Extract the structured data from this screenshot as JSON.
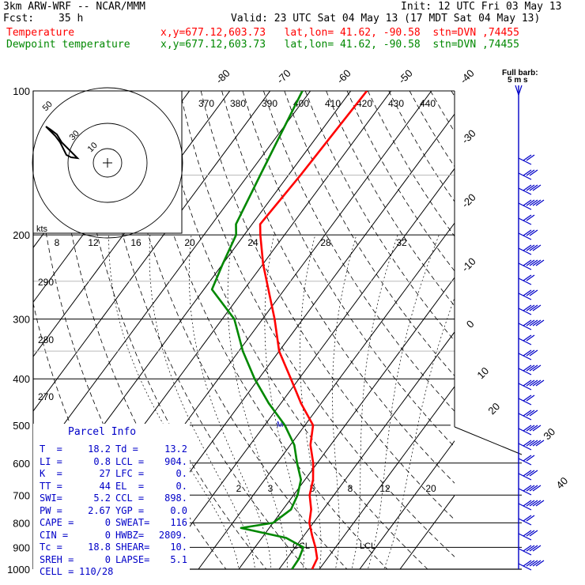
{
  "header": {
    "model": "3km ARW-WRF -- NCAR/MMM",
    "init": "Init: 12 UTC Fri 03 May 13",
    "fcst_label": "Fcst:",
    "fcst_value": "35 h",
    "valid": "Valid: 23 UTC Sat 04 May 13 (17 MDT Sat 04 May 13)",
    "temp_label": "Temperature",
    "dew_label": "Dewpoint temperature",
    "loc_text": "x,y=677.12,603.73   lat,lon= 41.62, -90.58  stn=DVN ,74455"
  },
  "colors": {
    "temperature": "#ff0000",
    "dewpoint": "#008800",
    "wind": "#0000c8",
    "axis": "#000000"
  },
  "chart_data": {
    "type": "line",
    "pressure_levels": [
      100,
      200,
      300,
      400,
      500,
      600,
      700,
      800,
      900,
      1000
    ],
    "pressure_labels": [
      "100",
      "200",
      "300",
      "400",
      "500",
      "600",
      "700",
      "800",
      "900",
      "1000"
    ],
    "isotherm_labels_top": [
      "-80",
      "-70",
      "-60",
      "-50",
      "-40"
    ],
    "isotherm_labels_right": [
      "-30",
      "-20",
      "-10",
      "0",
      "10",
      "20",
      "30",
      "40"
    ],
    "theta_labels": [
      "370",
      "380",
      "390",
      "400",
      "410",
      "420",
      "430",
      "440"
    ],
    "mixing_labels_upper": [
      "8",
      "12",
      "16",
      "20",
      "24",
      "28",
      "32"
    ],
    "mixing_labels_lower": [
      "2",
      "3",
      "5",
      "8",
      "12",
      "20"
    ],
    "dry_adiabat_labels": [
      "290",
      "280",
      "270"
    ],
    "full_barb": "Full barb:",
    "barb_unit": "5 m s",
    "hodograph": {
      "kts": "kts",
      "rings": [
        "10",
        "30",
        "50"
      ]
    },
    "ccl_label": "CCL",
    "lcl_label": "LCL",
    "series": [
      {
        "name": "Temperature",
        "points": [
          [
            100,
            -56
          ],
          [
            150,
            -57
          ],
          [
            190,
            -58
          ],
          [
            200,
            -56
          ],
          [
            230,
            -50
          ],
          [
            260,
            -44
          ],
          [
            300,
            -37
          ],
          [
            350,
            -30
          ],
          [
            400,
            -22
          ],
          [
            450,
            -15
          ],
          [
            500,
            -8
          ],
          [
            550,
            -5
          ],
          [
            600,
            -1
          ],
          [
            650,
            2
          ],
          [
            700,
            4
          ],
          [
            750,
            7
          ],
          [
            800,
            9
          ],
          [
            850,
            12
          ],
          [
            900,
            15
          ],
          [
            950,
            17.5
          ],
          [
            1000,
            18.2
          ]
        ]
      },
      {
        "name": "Dewpoint temperature",
        "points": [
          [
            100,
            -72
          ],
          [
            150,
            -67
          ],
          [
            190,
            -64
          ],
          [
            200,
            -62
          ],
          [
            230,
            -60
          ],
          [
            260,
            -58
          ],
          [
            300,
            -47
          ],
          [
            350,
            -39
          ],
          [
            400,
            -31
          ],
          [
            450,
            -23
          ],
          [
            500,
            -15
          ],
          [
            550,
            -9
          ],
          [
            600,
            -5
          ],
          [
            650,
            -1
          ],
          [
            700,
            1
          ],
          [
            750,
            2
          ],
          [
            800,
            0
          ],
          [
            820,
            -7
          ],
          [
            860,
            6
          ],
          [
            880,
            9
          ],
          [
            900,
            12
          ],
          [
            950,
            13
          ],
          [
            1000,
            13.2
          ]
        ]
      }
    ],
    "parcel_info": {
      "title": "Parcel Info",
      "rows": [
        [
          "T  =",
          "18.2",
          "Td =",
          "13.2"
        ],
        [
          "LI =",
          "0.8",
          "LCL =",
          "904."
        ],
        [
          "K  =",
          "27",
          "LFC =",
          "0."
        ],
        [
          "TT =",
          "44",
          "EL  =",
          "0."
        ],
        [
          "SWI=",
          "5.2",
          "CCL =",
          "898."
        ],
        [
          "PW =",
          "2.67",
          "YGP =",
          "0.0"
        ],
        [
          "CAPE =",
          "0",
          "SWEAT=",
          "116"
        ],
        [
          "CIN =",
          "0",
          "HWBZ=",
          "2809."
        ],
        [
          "Tc =",
          "18.8",
          "SHEAR=",
          "10."
        ],
        [
          "SREH =",
          "0",
          "LAPSE=",
          "5.1"
        ],
        [
          "CELL =",
          "110/28",
          "",
          ""
        ]
      ]
    }
  }
}
